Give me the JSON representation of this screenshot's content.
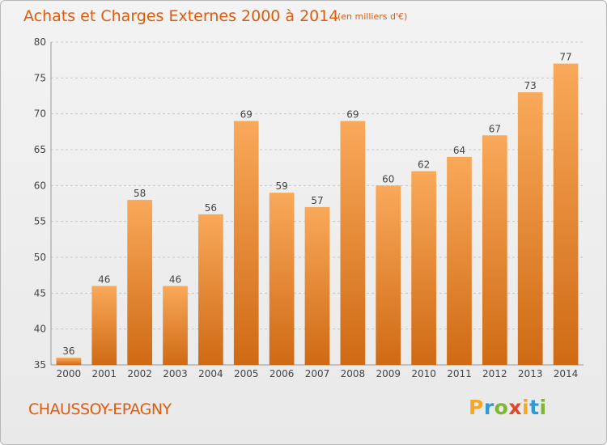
{
  "header": {
    "title": "Achats et Charges Externes 2000 à 2014",
    "subtitle": "(en milliers d'€)"
  },
  "footer": {
    "commune": "CHAUSSOY-EPAGNY",
    "logo": {
      "letters": [
        "P",
        "r",
        "o",
        "x",
        "i",
        "t",
        "i"
      ],
      "colors": [
        "#f5a623",
        "#2e9bd6",
        "#7cb82f",
        "#e2462d",
        "#f5a623",
        "#2e9bd6",
        "#7cb82f"
      ]
    }
  },
  "chart_data": {
    "type": "bar",
    "categories": [
      "2000",
      "2001",
      "2002",
      "2003",
      "2004",
      "2005",
      "2006",
      "2007",
      "2008",
      "2009",
      "2010",
      "2011",
      "2012",
      "2013",
      "2014"
    ],
    "values": [
      36,
      46,
      58,
      46,
      56,
      69,
      59,
      57,
      69,
      60,
      62,
      64,
      67,
      73,
      77
    ],
    "ylim": [
      35,
      80
    ],
    "yticks": [
      35,
      40,
      45,
      50,
      55,
      60,
      65,
      70,
      75,
      80
    ],
    "grid": true,
    "bar_color_top": "#f9a95a",
    "bar_color_bottom": "#cf6a14"
  }
}
